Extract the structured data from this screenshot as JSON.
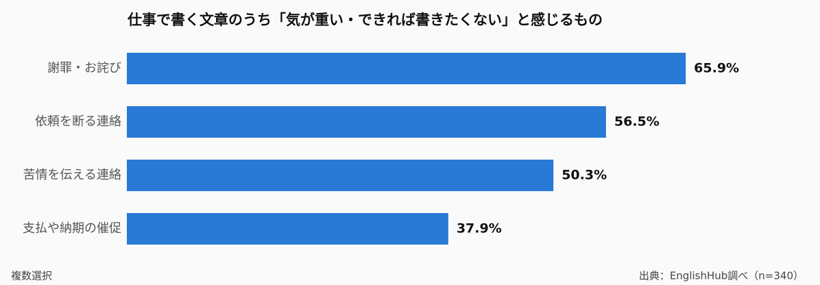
{
  "chart_data": {
    "type": "bar",
    "orientation": "horizontal",
    "title": "仕事で書く文章のうち「気が重い・できれば書きたくない」と感じるもの",
    "categories": [
      "謝罪・お詫び",
      "依頼を断る連絡",
      "苦情を伝える連絡",
      "支払や納期の催促"
    ],
    "values": [
      65.9,
      56.5,
      50.3,
      37.9
    ],
    "value_labels": [
      "65.9%",
      "56.5%",
      "50.3%",
      "37.9%"
    ],
    "color": "#2979d6",
    "note": "複数選択",
    "source": "出典：EnglishHub調べ（n=340）"
  }
}
